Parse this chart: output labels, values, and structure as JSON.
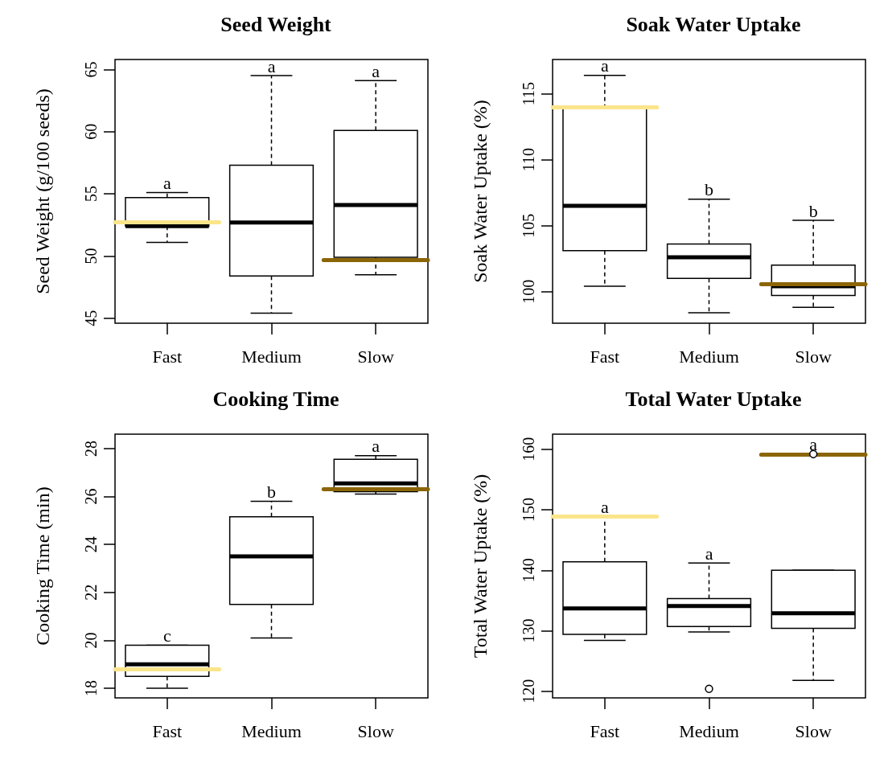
{
  "chart_data": [
    {
      "type": "box",
      "title": "Seed Weight",
      "ylabel": "Seed Weight (g/100 seeds)",
      "categories": [
        "Fast",
        "Medium",
        "Slow"
      ],
      "ylim": [
        44.6,
        65.8
      ],
      "yticks": [
        45,
        50,
        55,
        60,
        65
      ],
      "boxes": [
        {
          "low": 51.1,
          "q1": 52.4,
          "median": 52.4,
          "q3": 54.7,
          "high": 55.1
        },
        {
          "low": 45.4,
          "q1": 48.4,
          "median": 52.7,
          "q3": 57.3,
          "high": 64.5
        },
        {
          "low": 48.5,
          "q1": 49.9,
          "median": 54.1,
          "q3": 60.1,
          "high": 64.1
        }
      ],
      "ref_lines": [
        {
          "axis": "y",
          "value": 52.7,
          "color": "#fbe58a"
        },
        {
          "axis": "y",
          "value": 49.7,
          "color": "#8b6508"
        }
      ],
      "annotations": [
        {
          "text": "a",
          "x": "Fast",
          "y": 55.1
        },
        {
          "text": "a",
          "x": "Medium",
          "y": 64.5
        },
        {
          "text": "a",
          "x": "Slow",
          "y": 64.1
        }
      ]
    },
    {
      "type": "box",
      "title": "Soak Water Uptake",
      "ylabel": "Soak Water Uptake (%)",
      "categories": [
        "Fast",
        "Medium",
        "Slow"
      ],
      "ylim": [
        97.6,
        117.6
      ],
      "yticks": [
        100,
        105,
        110,
        115
      ],
      "boxes": [
        {
          "low": 100.4,
          "q1": 103.1,
          "median": 106.5,
          "q3": 113.9,
          "high": 116.4
        },
        {
          "low": 98.4,
          "q1": 101.0,
          "median": 102.6,
          "q3": 103.6,
          "high": 107.0
        },
        {
          "low": 98.8,
          "q1": 99.7,
          "median": 100.4,
          "q3": 102.0,
          "high": 105.4
        }
      ],
      "ref_lines": [
        {
          "axis": "y",
          "value": 114.0,
          "color": "#fbe58a"
        },
        {
          "axis": "y",
          "value": 100.6,
          "color": "#8b6508"
        }
      ],
      "annotations": [
        {
          "text": "a",
          "x": "Fast",
          "y": 116.4
        },
        {
          "text": "b",
          "x": "Medium",
          "y": 107.0
        },
        {
          "text": "b",
          "x": "Slow",
          "y": 105.4
        }
      ]
    },
    {
      "type": "box",
      "title": "Cooking Time",
      "ylabel": "Cooking Time (min)",
      "categories": [
        "Fast",
        "Medium",
        "Slow"
      ],
      "ylim": [
        17.6,
        28.6
      ],
      "yticks": [
        18,
        20,
        22,
        24,
        26,
        28
      ],
      "boxes": [
        {
          "low": 18.0,
          "q1": 18.5,
          "median": 19.0,
          "q3": 19.8,
          "high": 19.8
        },
        {
          "low": 20.1,
          "q1": 21.5,
          "median": 23.5,
          "q3": 25.15,
          "high": 25.8
        },
        {
          "low": 26.1,
          "q1": 26.2,
          "median": 26.55,
          "q3": 27.55,
          "high": 27.7
        }
      ],
      "ref_lines": [
        {
          "axis": "y",
          "value": 18.8,
          "color": "#fbe58a"
        },
        {
          "axis": "y",
          "value": 26.3,
          "color": "#8b6508"
        }
      ],
      "annotations": [
        {
          "text": "c",
          "x": "Fast",
          "y": 19.8
        },
        {
          "text": "b",
          "x": "Medium",
          "y": 25.8
        },
        {
          "text": "a",
          "x": "Slow",
          "y": 27.7
        }
      ]
    },
    {
      "type": "box",
      "title": "Total Water Uptake",
      "ylabel": "Total Water Uptake (%)",
      "categories": [
        "Fast",
        "Medium",
        "Slow"
      ],
      "ylim": [
        118.9,
        162.5
      ],
      "yticks": [
        120,
        130,
        140,
        150,
        160
      ],
      "boxes": [
        {
          "low": 128.4,
          "q1": 129.4,
          "median": 133.7,
          "q3": 141.4,
          "high": 148.9
        },
        {
          "low": 129.8,
          "q1": 130.7,
          "median": 134.1,
          "q3": 135.3,
          "high": 141.2,
          "outliers": [
            120.4
          ]
        },
        {
          "low": 121.8,
          "q1": 130.4,
          "median": 132.9,
          "q3": 140.0,
          "high": 140.0,
          "outliers": [
            159.2
          ]
        }
      ],
      "ref_lines": [
        {
          "axis": "y",
          "value": 148.9,
          "color": "#fbe58a"
        },
        {
          "axis": "y",
          "value": 159.2,
          "color": "#8b6508"
        }
      ],
      "annotations": [
        {
          "text": "a",
          "x": "Fast",
          "y": 148.9
        },
        {
          "text": "a",
          "x": "Medium",
          "y": 141.2
        },
        {
          "text": "a",
          "x": "Slow",
          "y": 159.2
        }
      ]
    }
  ]
}
